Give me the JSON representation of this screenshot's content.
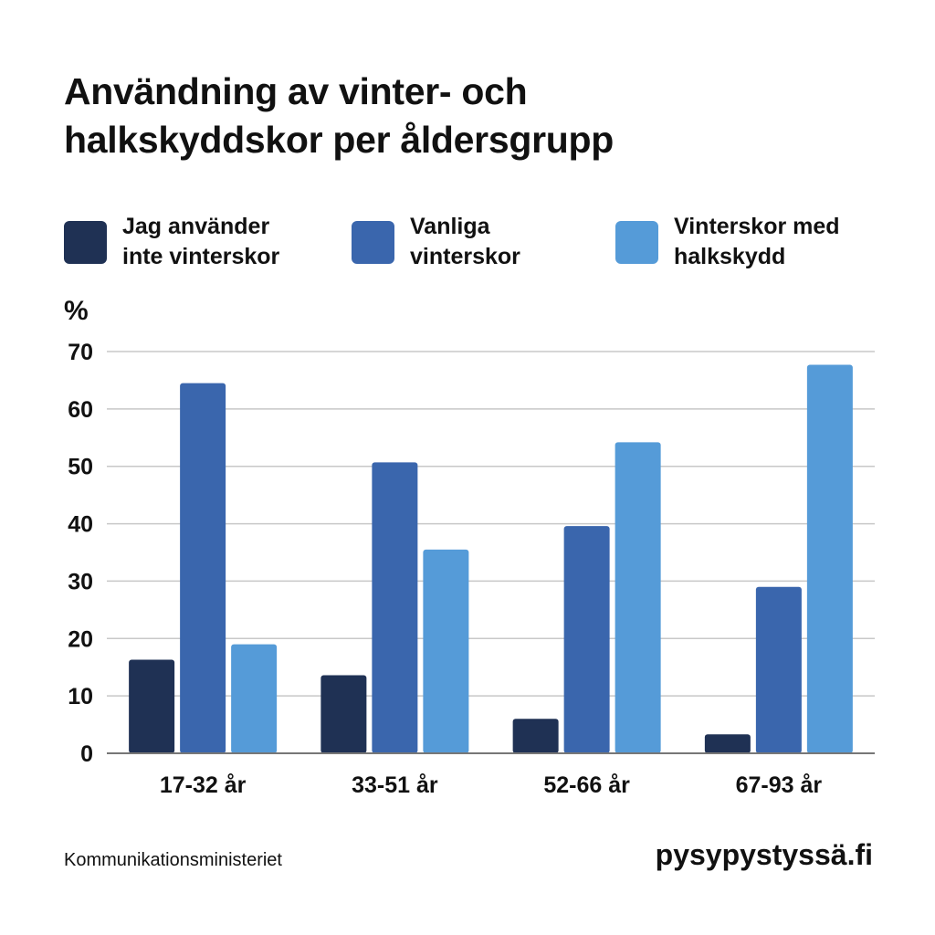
{
  "header": {
    "title_lines": [
      "Användning av vinter- och",
      "halkskyddskor per åldersgrupp"
    ]
  },
  "legend": [
    {
      "lines": [
        "Jag använder",
        "inte vinterskor"
      ],
      "color": "#1f3154"
    },
    {
      "lines": [
        "Vanliga",
        "vinterskor"
      ],
      "color": "#3a66ad"
    },
    {
      "lines": [
        "Vinterskor med",
        "halkskydd"
      ],
      "color": "#559bd8"
    }
  ],
  "chart_data": {
    "type": "bar",
    "title": "Användning av vinter- och halkskyddskor per åldersgrupp",
    "ylabel": "%",
    "xlabel": "",
    "ylim": [
      0,
      70
    ],
    "yticks": [
      0,
      10,
      20,
      30,
      40,
      50,
      60,
      70
    ],
    "grid": true,
    "legend_position": "top",
    "categories": [
      "17-32 år",
      "33-51 år",
      "52-66 år",
      "67-93 år"
    ],
    "series": [
      {
        "name": "Jag använder inte vinterskor",
        "color": "#1f3154",
        "values": [
          16.3,
          13.6,
          6.0,
          3.3
        ]
      },
      {
        "name": "Vanliga vinterskor",
        "color": "#3a66ad",
        "values": [
          64.5,
          50.7,
          39.6,
          29.0
        ]
      },
      {
        "name": "Vinterskor med halkskydd",
        "color": "#559bd8",
        "values": [
          19.0,
          35.5,
          54.2,
          67.7
        ]
      }
    ]
  },
  "footer": {
    "source": "Kommunikationsministeriet",
    "site": "pysypystyssä.fi"
  }
}
